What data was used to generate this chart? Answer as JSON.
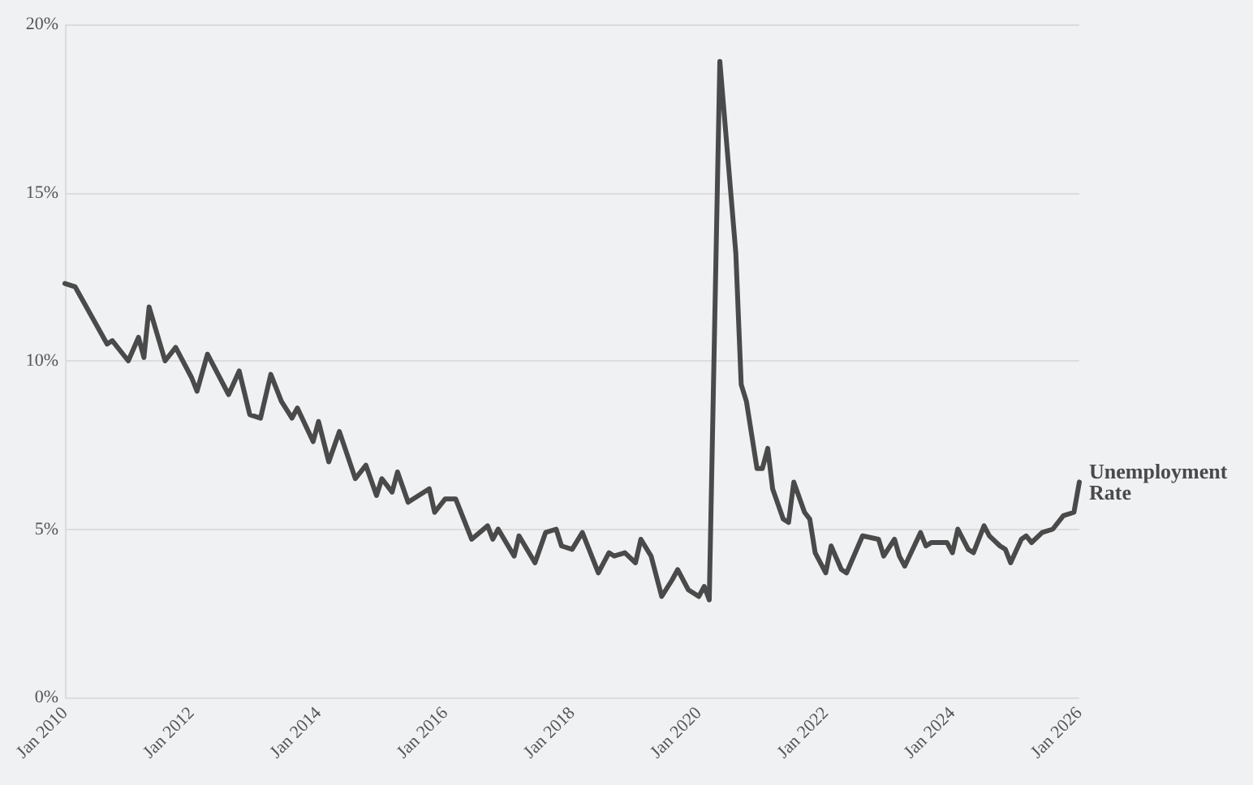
{
  "chart_data": {
    "type": "line",
    "x": [
      "2010-01",
      "2010-03",
      "2010-09",
      "2010-10",
      "2011-01",
      "2011-03",
      "2011-04",
      "2011-05",
      "2011-08",
      "2011-10",
      "2012-01",
      "2012-02",
      "2012-04",
      "2012-08",
      "2012-10",
      "2012-12",
      "2013-02",
      "2013-04",
      "2013-06",
      "2013-08",
      "2013-09",
      "2013-12",
      "2014-01",
      "2014-03",
      "2014-05",
      "2014-08",
      "2014-10",
      "2014-12",
      "2015-01",
      "2015-03",
      "2015-04",
      "2015-06",
      "2015-10",
      "2015-11",
      "2016-01",
      "2016-03",
      "2016-06",
      "2016-09",
      "2016-10",
      "2016-11",
      "2017-02",
      "2017-03",
      "2017-06",
      "2017-08",
      "2017-10",
      "2017-11",
      "2018-01",
      "2018-03",
      "2018-06",
      "2018-08",
      "2018-09",
      "2018-11",
      "2019-01",
      "2019-02",
      "2019-04",
      "2019-06",
      "2019-08",
      "2019-09",
      "2019-11",
      "2020-01",
      "2020-02",
      "2020-03",
      "2020-05",
      "2020-08",
      "2020-09",
      "2020-10",
      "2020-12",
      "2021-01",
      "2021-02",
      "2021-03",
      "2021-05",
      "2021-06",
      "2021-07",
      "2021-09",
      "2021-10",
      "2021-11",
      "2022-01",
      "2022-02",
      "2022-04",
      "2022-05",
      "2022-08",
      "2022-11",
      "2022-12",
      "2023-02",
      "2023-03",
      "2023-04",
      "2023-07",
      "2023-08",
      "2023-09",
      "2023-12",
      "2024-01",
      "2024-02",
      "2024-04",
      "2024-05",
      "2024-07",
      "2024-08",
      "2024-10",
      "2024-11",
      "2024-12",
      "2025-02",
      "2025-03",
      "2025-04",
      "2025-06",
      "2025-08",
      "2025-10",
      "2025-12",
      "2026-01"
    ],
    "series": [
      {
        "name": "Unemployment Rate",
        "color": "#4a4a4a",
        "values": [
          12.3,
          12.2,
          10.5,
          10.6,
          10.0,
          10.7,
          10.1,
          11.6,
          10.0,
          10.4,
          9.5,
          9.1,
          10.2,
          9.0,
          9.7,
          8.4,
          8.3,
          9.6,
          8.8,
          8.3,
          8.6,
          7.6,
          8.2,
          7.0,
          7.9,
          6.5,
          6.9,
          6.0,
          6.5,
          6.1,
          6.7,
          5.8,
          6.2,
          5.5,
          5.9,
          5.9,
          4.7,
          5.1,
          4.7,
          5.0,
          4.2,
          4.8,
          4.0,
          4.9,
          5.0,
          4.5,
          4.4,
          4.9,
          3.7,
          4.3,
          4.2,
          4.3,
          4.0,
          4.7,
          4.2,
          3.0,
          3.5,
          3.8,
          3.2,
          3.0,
          3.3,
          2.9,
          18.9,
          13.2,
          9.3,
          8.8,
          6.8,
          6.8,
          7.4,
          6.2,
          5.3,
          5.2,
          6.4,
          5.5,
          5.3,
          4.3,
          3.7,
          4.5,
          3.8,
          3.7,
          4.8,
          4.7,
          4.2,
          4.7,
          4.2,
          3.9,
          4.9,
          4.5,
          4.6,
          4.6,
          4.3,
          5.0,
          4.4,
          4.3,
          5.1,
          4.8,
          4.5,
          4.4,
          4.0,
          4.7,
          4.8,
          4.6,
          4.9,
          5.0,
          5.4,
          5.5,
          6.4
        ]
      }
    ],
    "xlim": [
      "2010-01",
      "2026-01"
    ],
    "xticks": [
      {
        "value": "2010-01",
        "label": "Jan 2010"
      },
      {
        "value": "2012-01",
        "label": "Jan 2012"
      },
      {
        "value": "2014-01",
        "label": "Jan 2014"
      },
      {
        "value": "2016-01",
        "label": "Jan 2016"
      },
      {
        "value": "2018-01",
        "label": "Jan 2018"
      },
      {
        "value": "2020-01",
        "label": "Jan 2020"
      },
      {
        "value": "2022-01",
        "label": "Jan 2022"
      },
      {
        "value": "2024-01",
        "label": "Jan 2024"
      },
      {
        "value": "2026-01",
        "label": "Jan 2026"
      }
    ],
    "ylim": [
      0,
      20
    ],
    "yticks": [
      {
        "value": 0,
        "label": "0%"
      },
      {
        "value": 5,
        "label": "5%"
      },
      {
        "value": 10,
        "label": "10%"
      },
      {
        "value": 15,
        "label": "15%"
      },
      {
        "value": 20,
        "label": "20%"
      }
    ],
    "grid": "y",
    "marker": "none",
    "line_style": "solid"
  }
}
